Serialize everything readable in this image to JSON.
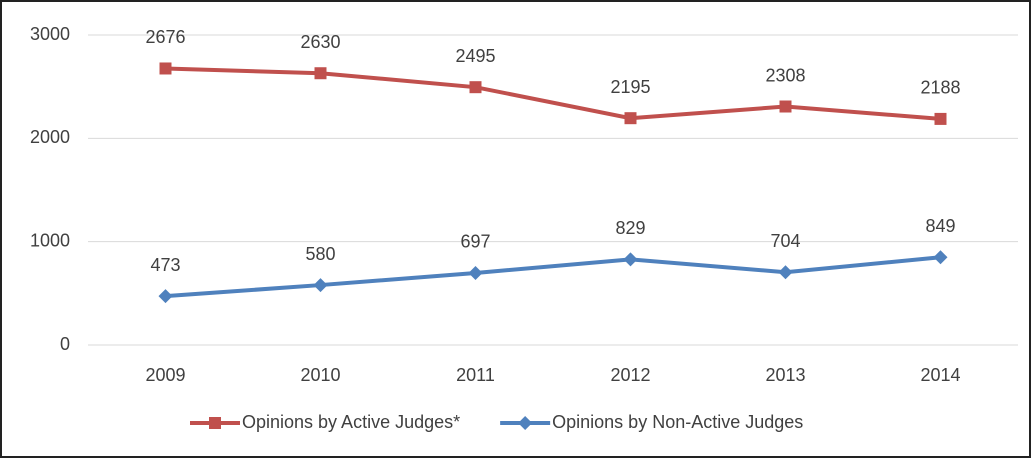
{
  "chart_data": {
    "type": "line",
    "categories": [
      "2009",
      "2010",
      "2011",
      "2012",
      "2013",
      "2014"
    ],
    "series": [
      {
        "name": "Opinions by Active Judges*",
        "color": "#c0504d",
        "marker": "square",
        "values": [
          2676,
          2630,
          2495,
          2195,
          2308,
          2188
        ]
      },
      {
        "name": "Opinions by Non-Active Judges",
        "color": "#4f81bd",
        "marker": "diamond",
        "values": [
          473,
          580,
          697,
          829,
          704,
          849
        ]
      }
    ],
    "ylim": [
      0,
      3000
    ],
    "yticks": [
      0,
      1000,
      2000,
      3000
    ],
    "grid": true,
    "legend": "bottom"
  }
}
